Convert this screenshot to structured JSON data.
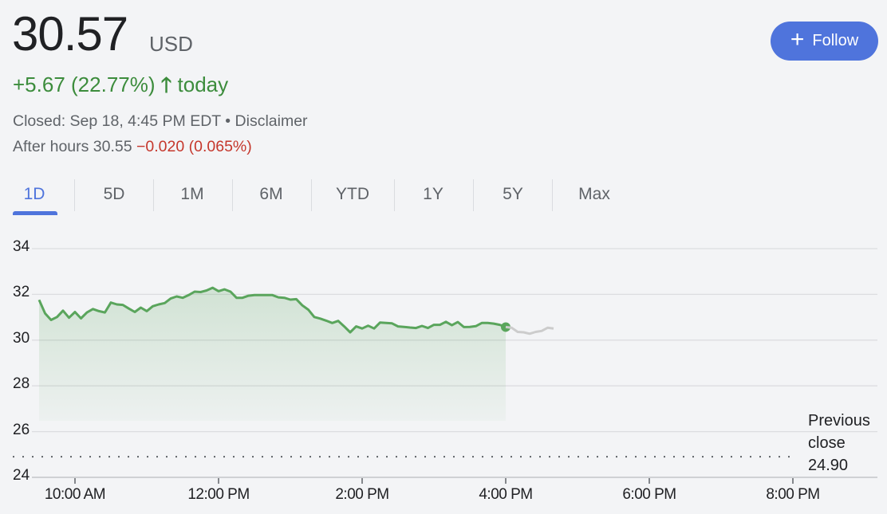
{
  "quote": {
    "price": "30.57",
    "currency": "USD",
    "change": "+5.67 (22.77%)",
    "change_arrow_icon": "arrow-up-icon",
    "change_period": "today",
    "closed_text": "Closed: Sep 18, 4:45 PM EDT",
    "separator": "•",
    "disclaimer": "Disclaimer",
    "after_hours_label": "After hours 30.55",
    "after_hours_change": "−0.020 (0.065%)",
    "colors": {
      "positive": "#3c8c3c",
      "negative": "#c5372c",
      "accent": "#4f74dc"
    }
  },
  "follow_button": {
    "icon": "plus-icon",
    "label": "Follow"
  },
  "tabs": [
    {
      "label": "1D",
      "active": true
    },
    {
      "label": "5D"
    },
    {
      "label": "1M"
    },
    {
      "label": "6M"
    },
    {
      "label": "YTD"
    },
    {
      "label": "1Y"
    },
    {
      "label": "5Y"
    },
    {
      "label": "Max"
    }
  ],
  "chart_data": {
    "type": "area",
    "y_ticks": [
      "34",
      "32",
      "30",
      "28",
      "26",
      "24"
    ],
    "ylim": [
      24,
      34
    ],
    "x_ticks": [
      "10:00 AM",
      "12:00 PM",
      "2:00 PM",
      "4:00 PM",
      "6:00 PM",
      "8:00 PM"
    ],
    "xlim": [
      "09:30",
      "20:30"
    ],
    "grid": true,
    "previous_close": {
      "label_lines": [
        "Previous",
        "close",
        "24.90"
      ],
      "value": 24.9
    },
    "series": [
      {
        "session": "regular",
        "color": "#5aa55c",
        "x": [
          "09:30",
          "09:35",
          "09:40",
          "09:45",
          "09:50",
          "09:55",
          "10:00",
          "10:05",
          "10:10",
          "10:15",
          "10:20",
          "10:25",
          "10:30",
          "10:35",
          "10:40",
          "10:45",
          "10:50",
          "10:55",
          "11:00",
          "11:05",
          "11:10",
          "11:15",
          "11:20",
          "11:25",
          "11:30",
          "11:35",
          "11:40",
          "11:45",
          "11:50",
          "11:55",
          "12:00",
          "12:05",
          "12:10",
          "12:15",
          "12:20",
          "12:25",
          "12:30",
          "12:35",
          "12:40",
          "12:45",
          "12:50",
          "12:55",
          "13:00",
          "13:05",
          "13:10",
          "13:15",
          "13:20",
          "13:25",
          "13:30",
          "13:35",
          "13:40",
          "13:45",
          "13:50",
          "13:55",
          "14:00",
          "14:05",
          "14:10",
          "14:15",
          "14:20",
          "14:25",
          "14:30",
          "14:35",
          "14:40",
          "14:45",
          "14:50",
          "14:55",
          "15:00",
          "15:05",
          "15:10",
          "15:15",
          "15:20",
          "15:25",
          "15:30",
          "15:35",
          "15:40",
          "15:45",
          "15:50",
          "15:55",
          "16:00"
        ],
        "y": [
          31.76,
          31.17,
          30.88,
          31.01,
          31.29,
          30.98,
          31.23,
          30.95,
          31.21,
          31.36,
          31.27,
          31.21,
          31.64,
          31.56,
          31.54,
          31.38,
          31.23,
          31.42,
          31.27,
          31.48,
          31.56,
          31.62,
          31.82,
          31.91,
          31.85,
          31.97,
          32.12,
          32.1,
          32.17,
          32.29,
          32.14,
          32.22,
          32.12,
          31.85,
          31.85,
          31.94,
          31.97,
          31.97,
          31.97,
          31.97,
          31.87,
          31.85,
          31.77,
          31.79,
          31.52,
          31.33,
          31.01,
          30.94,
          30.85,
          30.75,
          30.84,
          30.6,
          30.34,
          30.6,
          30.51,
          30.63,
          30.51,
          30.77,
          30.75,
          30.73,
          30.6,
          30.58,
          30.55,
          30.53,
          30.62,
          30.53,
          30.67,
          30.67,
          30.8,
          30.65,
          30.79,
          30.57,
          30.58,
          30.61,
          30.75,
          30.75,
          30.72,
          30.67,
          30.57
        ]
      },
      {
        "session": "after-hours",
        "color": "#cccccc",
        "x": [
          "16:00",
          "16:05",
          "16:10",
          "16:15",
          "16:20",
          "16:25",
          "16:30",
          "16:35",
          "16:40"
        ],
        "y": [
          30.57,
          30.54,
          30.36,
          30.34,
          30.28,
          30.36,
          30.4,
          30.54,
          30.51
        ]
      }
    ]
  }
}
